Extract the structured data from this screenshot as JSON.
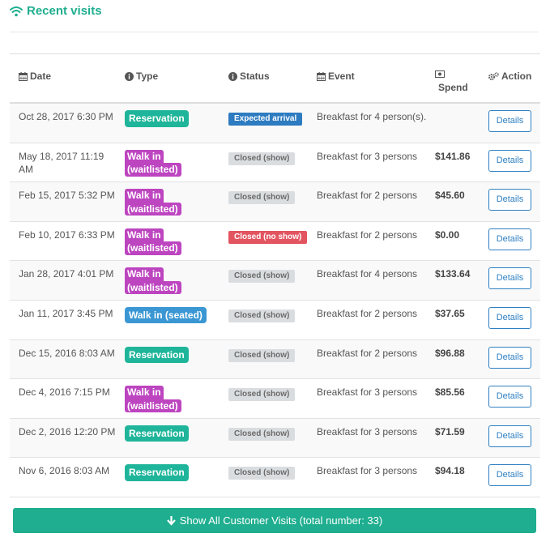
{
  "panel": {
    "title": "Recent visits"
  },
  "table": {
    "headers": {
      "date": "Date",
      "type": "Type",
      "status": "Status",
      "event": "Event",
      "spend": "Spend",
      "action": "Action"
    },
    "rows": [
      {
        "date": "Oct 28, 2017 6:30 PM",
        "type": "Reservation",
        "type_kind": "reservation",
        "status": "Expected arrival",
        "status_kind": "expected",
        "event": "Breakfast for 4 person(s).",
        "spend": "",
        "action": "Details"
      },
      {
        "date": "May 18, 2017 11:19 AM",
        "type": "Walk in (waitlisted)",
        "type_kind": "waitlisted",
        "status": "Closed (show)",
        "status_kind": "closed",
        "event": "Breakfast for 3 persons",
        "spend": "$141.86",
        "action": "Details"
      },
      {
        "date": "Feb 15, 2017 5:32 PM",
        "type": "Walk in (waitlisted)",
        "type_kind": "waitlisted",
        "status": "Closed (show)",
        "status_kind": "closed",
        "event": "Breakfast for 2 persons",
        "spend": "$45.60",
        "action": "Details"
      },
      {
        "date": "Feb 10, 2017 6:33 PM",
        "type": "Walk in (waitlisted)",
        "type_kind": "waitlisted",
        "status": "Closed (no show)",
        "status_kind": "noshow",
        "event": "Breakfast for 2 persons",
        "spend": "$0.00",
        "action": "Details"
      },
      {
        "date": "Jan 28, 2017 4:01 PM",
        "type": "Walk in (waitlisted)",
        "type_kind": "waitlisted",
        "status": "Closed (show)",
        "status_kind": "closed",
        "event": "Breakfast for 4 persons",
        "spend": "$133.64",
        "action": "Details"
      },
      {
        "date": "Jan 11, 2017 3:45 PM",
        "type": "Walk in (seated)",
        "type_kind": "seated",
        "status": "Closed (show)",
        "status_kind": "closed",
        "event": "Breakfast for 2 persons",
        "spend": "$37.65",
        "action": "Details"
      },
      {
        "date": "Dec 15, 2016 8:03 AM",
        "type": "Reservation",
        "type_kind": "reservation",
        "status": "Closed (show)",
        "status_kind": "closed",
        "event": "Breakfast for 2 persons",
        "spend": "$96.88",
        "action": "Details"
      },
      {
        "date": "Dec 4, 2016 7:15 PM",
        "type": "Walk in (waitlisted)",
        "type_kind": "waitlisted",
        "status": "Closed (show)",
        "status_kind": "closed",
        "event": "Breakfast for 3 persons",
        "spend": "$85.56",
        "action": "Details"
      },
      {
        "date": "Dec 2, 2016 12:20 PM",
        "type": "Reservation",
        "type_kind": "reservation",
        "status": "Closed (show)",
        "status_kind": "closed",
        "event": "Breakfast for 3 persons",
        "spend": "$71.59",
        "action": "Details"
      },
      {
        "date": "Nov 6, 2016 8:03 AM",
        "type": "Reservation",
        "type_kind": "reservation",
        "status": "Closed (show)",
        "status_kind": "closed",
        "event": "Breakfast for 3 persons",
        "spend": "$94.18",
        "action": "Details"
      }
    ]
  },
  "footer": {
    "show_all_label": "Show All Customer Visits (total number: 33)"
  },
  "colors": {
    "accent": "#1fae8f",
    "reservation": "#1fb59a",
    "waitlisted": "#bd45c0",
    "seated": "#3a97d3",
    "expected": "#2d7bc0",
    "noshow": "#e2545f",
    "closed": "#dadde0",
    "link": "#2f80c2"
  },
  "icons": {
    "title": "wifi-icon",
    "date": "calendar-icon",
    "type": "info-circle-icon",
    "status": "info-circle-icon",
    "event": "calendar-icon",
    "spend": "money-icon",
    "action": "gears-icon",
    "show_all": "arrow-down-icon"
  }
}
